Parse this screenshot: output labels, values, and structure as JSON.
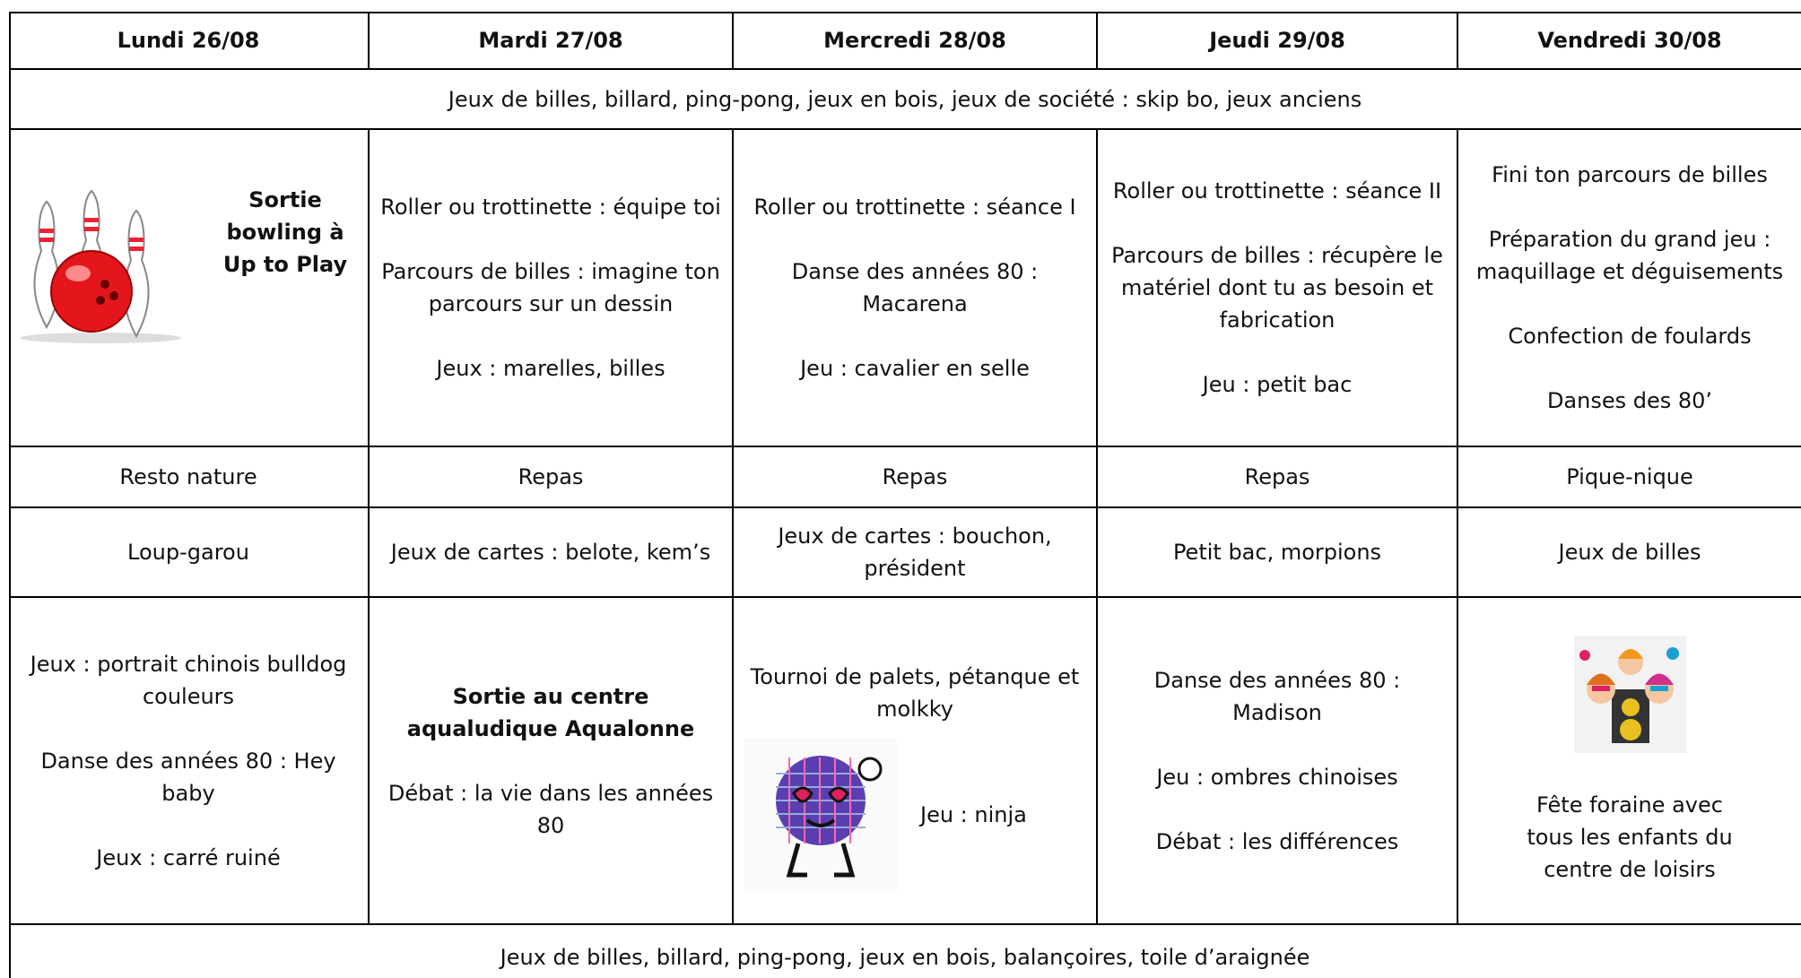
{
  "table": {
    "headers": [
      "Lundi 26/08",
      "Mardi 27/08",
      "Mercredi 28/08",
      "Jeudi 29/08",
      "Vendredi 30/08"
    ],
    "morning_banner": "Jeux de billes, billard, ping-pong, jeux en bois, jeux de société : skip bo, jeux anciens",
    "morning": [
      [
        "Sortie bowling à Up to Play"
      ],
      [
        "Roller ou trottinette : équipe toi",
        "Parcours de billes : imagine ton parcours sur un dessin",
        "Jeux : marelles, billes"
      ],
      [
        "Roller ou trottinette : séance I",
        "Danse des années 80 : Macarena",
        "Jeu : cavalier en selle"
      ],
      [
        "Roller ou trottinette : séance II",
        "Parcours de billes : récupère le matériel dont tu as besoin et fabrication",
        "Jeu : petit bac"
      ],
      [
        "Fini ton parcours de billes",
        "Préparation du grand jeu : maquillage et déguisements",
        "Confection de foulards",
        "Danses des 80’"
      ]
    ],
    "lunch": [
      "Resto nature",
      "Repas",
      "Repas",
      "Repas",
      "Pique-nique"
    ],
    "early_afternoon": [
      "Loup-garou",
      "Jeux de cartes : belote, kem’s",
      "Jeux de cartes : bouchon, président",
      "Petit bac, morpions",
      "Jeux de billes"
    ],
    "afternoon": [
      [
        "Jeux : portrait chinois bulldog couleurs",
        "Danse des années 80 :  Hey baby",
        "Jeux : carré ruiné"
      ],
      [
        "Sortie au centre aqualudique Aqualonne",
        "Débat : la vie dans les années 80"
      ],
      [
        "Tournoi de palets, pétanque et molkky",
        "Jeu : ninja"
      ],
      [
        "Danse des années 80 : Madison",
        "Jeu : ombres chinoises",
        "Débat : les différences"
      ],
      [
        "Fête foraine avec tous les enfants du centre de loisirs"
      ]
    ],
    "evening_banner": "Jeux de billes, billard, ping-pong, jeux en bois, balançoires, toile d’araignée"
  }
}
